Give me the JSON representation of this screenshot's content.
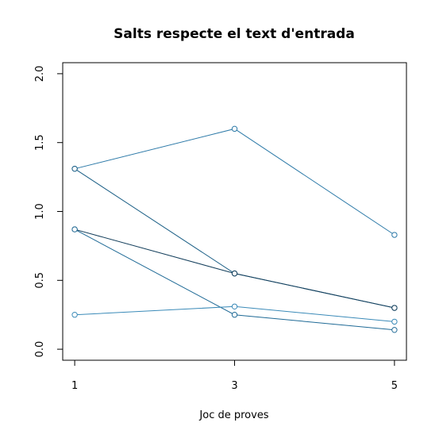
{
  "chart_data": {
    "type": "line",
    "title": "Salts respecte el text d'entrada",
    "xlabel": "Joc de proves",
    "ylabel": "",
    "xlim": [
      0.85,
      5.15
    ],
    "ylim": [
      -0.08,
      2.08
    ],
    "xticks": [
      1,
      3,
      5
    ],
    "xtick_labels": [
      "1",
      "3",
      "5"
    ],
    "yticks": [
      0.0,
      0.5,
      1.0,
      1.5,
      2.0
    ],
    "ytick_labels": [
      "0.0",
      "0.5",
      "1.0",
      "1.5",
      "2.0"
    ],
    "grid": false,
    "legend": "none",
    "x": [
      1,
      3,
      5
    ],
    "series": [
      {
        "values": [
          1.31,
          1.6,
          0.83
        ],
        "color": "#2d7aa8"
      },
      {
        "values": [
          1.31,
          0.55,
          0.3
        ],
        "color": "#1b5f86"
      },
      {
        "values": [
          0.87,
          0.55,
          0.3
        ],
        "color": "#143f5c"
      },
      {
        "values": [
          0.87,
          0.25,
          0.14
        ],
        "color": "#1f6a96"
      },
      {
        "values": [
          0.25,
          0.31,
          0.2
        ],
        "color": "#3a8ab8"
      }
    ]
  }
}
